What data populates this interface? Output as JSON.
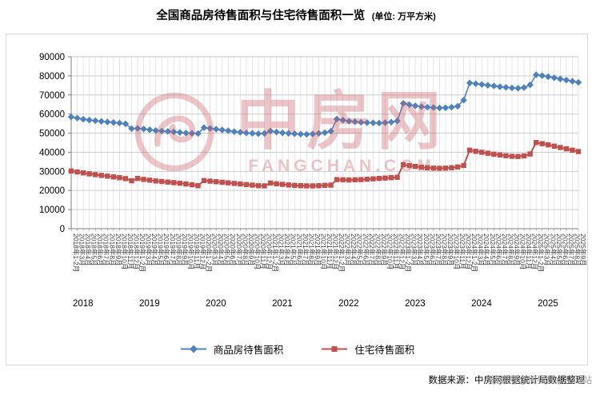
{
  "title": {
    "text": "全国商品房待售面积与住宅待售面积一览",
    "unit": "(单位: 万平方米)"
  },
  "watermark": {
    "brand": "中房网",
    "domain": "FANGCHAN.COM",
    "color": "#c9595f"
  },
  "footer": {
    "source": "数据来源：中房网根据统计局数据整理",
    "overlay": "搜狐号@搜狐焦点岳阳站"
  },
  "chart_data": {
    "type": "line",
    "title": "全国商品房待售面积与住宅待售面积一览",
    "unit": "万平方米",
    "ylim": [
      0,
      90000
    ],
    "yticks": [
      0,
      10000,
      20000,
      30000,
      40000,
      50000,
      60000,
      70000,
      80000,
      90000
    ],
    "grid": true,
    "legend_position": "bottom",
    "x": [
      "2018年1-2月",
      "2018年3月",
      "2018年4月",
      "2018年5月",
      "2018年6月",
      "2018年7月",
      "2018年8月",
      "2018年9月",
      "2018年10月",
      "2018年11月",
      "2018年12月",
      "2019年1-2月",
      "2019年3月",
      "2019年4月",
      "2019年5月",
      "2019年6月",
      "2019年7月",
      "2019年8月",
      "2019年9月",
      "2019年10月",
      "2019年11月",
      "2019年12月",
      "2020年1-2月",
      "2020年3月",
      "2020年4月",
      "2020年5月",
      "2020年6月",
      "2020年7月",
      "2020年8月",
      "2020年9月",
      "2020年10月",
      "2020年11月",
      "2020年12月",
      "2021年1-2月",
      "2021年3月",
      "2021年4月",
      "2021年5月",
      "2021年6月",
      "2021年7月",
      "2021年8月",
      "2021年9月",
      "2021年10月",
      "2021年11月",
      "2021年12月",
      "2022年1-2月",
      "2022年3月",
      "2022年4月",
      "2022年5月",
      "2022年6月",
      "2022年7月",
      "2022年8月",
      "2022年9月",
      "2022年10月",
      "2022年11月",
      "2022年12月",
      "2023年1-2月",
      "2023年3月",
      "2023年4月",
      "2023年5月",
      "2023年6月",
      "2023年7月",
      "2023年8月",
      "2023年9月",
      "2023年10月",
      "2023年11月",
      "2023年12月",
      "2024年1-2月",
      "2024年3月",
      "2024年4月",
      "2024年5月",
      "2024年6月",
      "2024年7月",
      "2024年8月",
      "2024年9月",
      "2024年10月",
      "2024年11月",
      "2024年12月",
      "2025年1-2月",
      "2025年3月",
      "2025年4月",
      "2025年5月",
      "2025年6月",
      "2025年7月",
      "2025年8月",
      "2025年9月"
    ],
    "year_groups": [
      {
        "year": "2018",
        "start": 0
      },
      {
        "year": "2019",
        "start": 11
      },
      {
        "year": "2020",
        "start": 22
      },
      {
        "year": "2021",
        "start": 33
      },
      {
        "year": "2022",
        "start": 44
      },
      {
        "year": "2023",
        "start": 55
      },
      {
        "year": "2024",
        "start": 66
      },
      {
        "year": "2025",
        "start": 77
      }
    ],
    "series": [
      {
        "name": "商品房待售面积",
        "color": "#4F81BD",
        "marker": "diamond",
        "values": [
          58500,
          57900,
          57300,
          56900,
          56500,
          56200,
          55900,
          55600,
          55300,
          54900,
          52400,
          52500,
          52200,
          51800,
          51400,
          51100,
          50900,
          50700,
          50400,
          50100,
          49900,
          49800,
          52900,
          52500,
          52100,
          51700,
          51300,
          50800,
          50500,
          50100,
          49900,
          49700,
          49850,
          51100,
          50600,
          50200,
          49900,
          49700,
          49500,
          49400,
          49600,
          49900,
          50300,
          51000,
          57400,
          56800,
          56300,
          56000,
          55700,
          55500,
          55400,
          55300,
          55500,
          55800,
          56400,
          65600,
          64900,
          64300,
          63900,
          63600,
          63400,
          63200,
          63300,
          63600,
          64100,
          67300,
          76300,
          75900,
          75500,
          75100,
          74700,
          74300,
          74000,
          73700,
          73500,
          73900,
          75300,
          80600,
          80100,
          79600,
          79000,
          78400,
          77800,
          77200,
          76600
        ]
      },
      {
        "name": "住宅待售面积",
        "color": "#C0504D",
        "marker": "square",
        "values": [
          30200,
          29700,
          29200,
          28700,
          28300,
          27900,
          27500,
          27100,
          26700,
          26200,
          25100,
          26300,
          25800,
          25400,
          25000,
          24700,
          24400,
          24100,
          23800,
          23400,
          23000,
          22500,
          25200,
          24900,
          24600,
          24300,
          24000,
          23700,
          23400,
          23100,
          22800,
          22500,
          22400,
          23900,
          23500,
          23200,
          22900,
          22700,
          22500,
          22400,
          22400,
          22500,
          22700,
          22800,
          25700,
          25600,
          25500,
          25600,
          25700,
          25900,
          26100,
          26300,
          26500,
          26700,
          26900,
          33500,
          33000,
          32600,
          32200,
          31900,
          31700,
          31600,
          31700,
          31900,
          32300,
          33100,
          41100,
          40500,
          40000,
          39500,
          39000,
          38600,
          38200,
          37900,
          37800,
          38100,
          39100,
          45100,
          44500,
          43900,
          43200,
          42500,
          41800,
          41100,
          40400
        ]
      }
    ]
  }
}
